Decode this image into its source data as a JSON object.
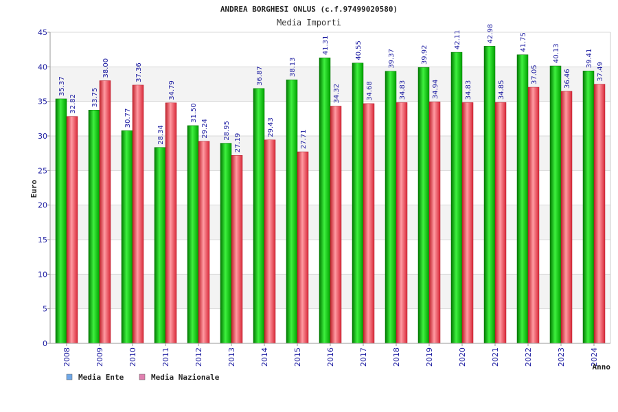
{
  "chart_data": {
    "type": "bar",
    "title": "ANDREA BORGHESI ONLUS (c.f.97499020580)",
    "subtitle": "Media Importi",
    "xlabel": "Anno",
    "ylabel": "Euro",
    "ylim": [
      0,
      45
    ],
    "yticks": [
      0,
      5,
      10,
      15,
      20,
      25,
      30,
      35,
      40,
      45
    ],
    "grid": true,
    "legend_position": "bottom-left",
    "categories": [
      "2008",
      "2009",
      "2010",
      "2011",
      "2012",
      "2013",
      "2014",
      "2015",
      "2016",
      "2017",
      "2018",
      "2019",
      "2020",
      "2021",
      "2022",
      "2023",
      "2024"
    ],
    "series": [
      {
        "name": "Media Ente",
        "color": "#00c000",
        "legend_color": "#6fa8e8",
        "values": [
          35.37,
          33.75,
          30.77,
          28.34,
          31.5,
          28.95,
          36.87,
          38.13,
          41.31,
          40.55,
          39.37,
          39.92,
          42.11,
          42.98,
          41.75,
          40.13,
          39.41
        ],
        "labels": [
          "35.37",
          "33.75",
          "30.77",
          "28.34",
          "31.50",
          "28.95",
          "36.87",
          "38.13",
          "41.31",
          "40.55",
          "39.37",
          "39.92",
          "42.11",
          "42.98",
          "41.75",
          "40.13",
          "39.41"
        ]
      },
      {
        "name": "Media Nazionale",
        "color": "#e83040",
        "legend_color": "#e080b0",
        "values": [
          32.82,
          38.0,
          37.36,
          34.79,
          29.24,
          27.19,
          29.43,
          27.71,
          34.32,
          34.68,
          34.83,
          34.94,
          34.83,
          34.85,
          37.05,
          36.46,
          37.49
        ],
        "labels": [
          "32.82",
          "38.00",
          "37.36",
          "34.79",
          "29.24",
          "27.19",
          "29.43",
          "27.71",
          "34.32",
          "34.68",
          "34.83",
          "34.94",
          "34.83",
          "34.85",
          "37.05",
          "36.46",
          "37.49"
        ]
      }
    ]
  }
}
